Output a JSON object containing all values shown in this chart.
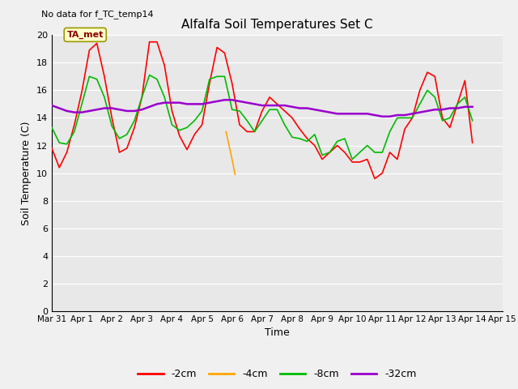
{
  "title": "Alfalfa Soil Temperatures Set C",
  "subtitle": "No data for f_TC_temp14",
  "xlabel": "Time",
  "ylabel": "Soil Temperature (C)",
  "ylim": [
    0,
    20
  ],
  "yticks": [
    0,
    2,
    4,
    6,
    8,
    10,
    12,
    14,
    16,
    18,
    20
  ],
  "xtick_labels": [
    "Mar 31",
    "Apr 1",
    "Apr 2",
    "Apr 3",
    "Apr 4",
    "Apr 5",
    "Apr 6",
    "Apr 7",
    "Apr 8",
    "Apr 9",
    "Apr 10",
    "Apr 11",
    "Apr 12",
    "Apr 13",
    "Apr 14",
    "Apr 15"
  ],
  "annotation_label": "TA_met",
  "bg_color": "#e8e8e8",
  "fig_color": "#f0f0f0",
  "line_colors": {
    "2cm": "#ff0000",
    "4cm": "#ffa500",
    "8cm": "#00bb00",
    "32cm": "#9900cc"
  },
  "legend_labels": [
    "-2cm",
    "-4cm",
    "-8cm",
    "-32cm"
  ],
  "legend_colors": [
    "#ff0000",
    "#ffa500",
    "#00bb00",
    "#9900cc"
  ],
  "t_2cm": [
    0,
    0.25,
    0.5,
    0.75,
    1.0,
    1.25,
    1.5,
    1.75,
    2.0,
    2.25,
    2.5,
    2.75,
    3.0,
    3.25,
    3.5,
    3.75,
    4.0,
    4.25,
    4.5,
    4.75,
    5.0,
    5.25,
    5.5,
    5.75,
    6.0,
    6.25,
    6.5,
    6.75,
    7.0,
    7.25,
    7.5,
    7.75,
    8.0,
    8.25,
    8.5,
    8.75,
    9.0,
    9.25,
    9.5,
    9.75,
    10.0,
    10.25,
    10.5,
    10.75,
    11.0,
    11.25,
    11.5,
    11.75,
    12.0,
    12.25,
    12.5,
    12.75,
    13.0,
    13.25,
    13.5,
    13.75,
    14.0
  ],
  "v_2cm": [
    11.8,
    10.4,
    11.5,
    13.5,
    15.9,
    18.9,
    19.4,
    17.0,
    14.0,
    11.5,
    11.8,
    13.3,
    15.5,
    19.5,
    19.5,
    17.8,
    14.5,
    12.7,
    11.7,
    12.8,
    13.5,
    16.5,
    19.1,
    18.7,
    16.5,
    13.5,
    13.0,
    13.0,
    14.5,
    15.5,
    15.0,
    14.5,
    14.0,
    13.2,
    12.5,
    12.0,
    11.0,
    11.5,
    12.0,
    11.5,
    10.8,
    10.8,
    11.0,
    9.6,
    10.0,
    11.5,
    11.0,
    13.2,
    14.0,
    16.0,
    17.3,
    17.0,
    14.0,
    13.3,
    15.0,
    16.7,
    12.2
  ],
  "t_4cm": [
    5.8,
    5.9,
    6.0,
    6.1
  ],
  "v_4cm": [
    13.0,
    12.0,
    11.0,
    9.9
  ],
  "t_8cm": [
    0,
    0.25,
    0.5,
    0.75,
    1.0,
    1.25,
    1.5,
    1.75,
    2.0,
    2.25,
    2.5,
    2.75,
    3.0,
    3.25,
    3.5,
    3.75,
    4.0,
    4.25,
    4.5,
    4.75,
    5.0,
    5.25,
    5.5,
    5.75,
    6.0,
    6.25,
    6.5,
    6.75,
    7.0,
    7.25,
    7.5,
    7.75,
    8.0,
    8.25,
    8.5,
    8.75,
    9.0,
    9.25,
    9.5,
    9.75,
    10.0,
    10.25,
    10.5,
    10.75,
    11.0,
    11.25,
    11.5,
    11.75,
    12.0,
    12.25,
    12.5,
    12.75,
    13.0,
    13.25,
    13.5,
    13.75,
    14.0
  ],
  "v_8cm": [
    13.3,
    12.2,
    12.1,
    13.0,
    15.0,
    17.0,
    16.8,
    15.5,
    13.4,
    12.5,
    12.8,
    13.8,
    15.5,
    17.1,
    16.8,
    15.5,
    13.5,
    13.1,
    13.3,
    13.8,
    14.5,
    16.8,
    17.0,
    17.0,
    14.6,
    14.5,
    13.8,
    13.0,
    13.8,
    14.6,
    14.6,
    13.5,
    12.6,
    12.5,
    12.3,
    12.8,
    11.3,
    11.5,
    12.3,
    12.5,
    11.0,
    11.5,
    12.0,
    11.5,
    11.5,
    13.0,
    14.0,
    14.0,
    14.0,
    15.0,
    16.0,
    15.5,
    13.8,
    14.0,
    15.0,
    15.5,
    13.8
  ],
  "t_32cm": [
    0,
    0.25,
    0.5,
    0.75,
    1.0,
    1.25,
    1.5,
    1.75,
    2.0,
    2.25,
    2.5,
    2.75,
    3.0,
    3.25,
    3.5,
    3.75,
    4.0,
    4.25,
    4.5,
    4.75,
    5.0,
    5.25,
    5.5,
    5.75,
    6.0,
    6.25,
    6.5,
    6.75,
    7.0,
    7.25,
    7.5,
    7.75,
    8.0,
    8.25,
    8.5,
    8.75,
    9.0,
    9.25,
    9.5,
    9.75,
    10.0,
    10.25,
    10.5,
    10.75,
    11.0,
    11.25,
    11.5,
    11.75,
    12.0,
    12.25,
    12.5,
    12.75,
    13.0,
    13.25,
    13.5,
    13.75,
    14.0
  ],
  "v_32cm": [
    14.9,
    14.7,
    14.5,
    14.4,
    14.4,
    14.5,
    14.6,
    14.7,
    14.7,
    14.6,
    14.5,
    14.5,
    14.6,
    14.8,
    15.0,
    15.1,
    15.1,
    15.1,
    15.0,
    15.0,
    15.0,
    15.1,
    15.2,
    15.3,
    15.3,
    15.2,
    15.1,
    15.0,
    14.9,
    14.9,
    14.9,
    14.9,
    14.8,
    14.7,
    14.7,
    14.6,
    14.5,
    14.4,
    14.3,
    14.3,
    14.3,
    14.3,
    14.3,
    14.2,
    14.1,
    14.1,
    14.2,
    14.2,
    14.3,
    14.4,
    14.5,
    14.6,
    14.6,
    14.7,
    14.7,
    14.8,
    14.8
  ]
}
